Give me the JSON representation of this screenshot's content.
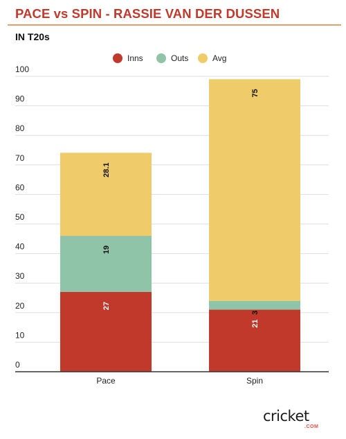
{
  "header": {
    "title": "PACE vs SPIN - RASSIE VAN DER DUSSEN",
    "subtitle": "IN T20s"
  },
  "brand": {
    "logo_text": "cricket",
    "logo_suffix": ".COM",
    "accent_color": "#e74c3c"
  },
  "chart_data": {
    "type": "bar",
    "stacked": true,
    "categories": [
      "Pace",
      "Spin"
    ],
    "series": [
      {
        "name": "Inns",
        "values": [
          27,
          21
        ],
        "color": "#c0392b"
      },
      {
        "name": "Outs",
        "values": [
          19,
          3
        ],
        "color": "#8fc4a8"
      },
      {
        "name": "Avg",
        "values": [
          28.1,
          75
        ],
        "color": "#f0cb6a"
      }
    ],
    "ylim": [
      0,
      100
    ],
    "yticks": [
      0,
      10,
      20,
      30,
      40,
      50,
      60,
      70,
      80,
      90,
      100
    ],
    "grid": true,
    "legend": "top-center"
  }
}
